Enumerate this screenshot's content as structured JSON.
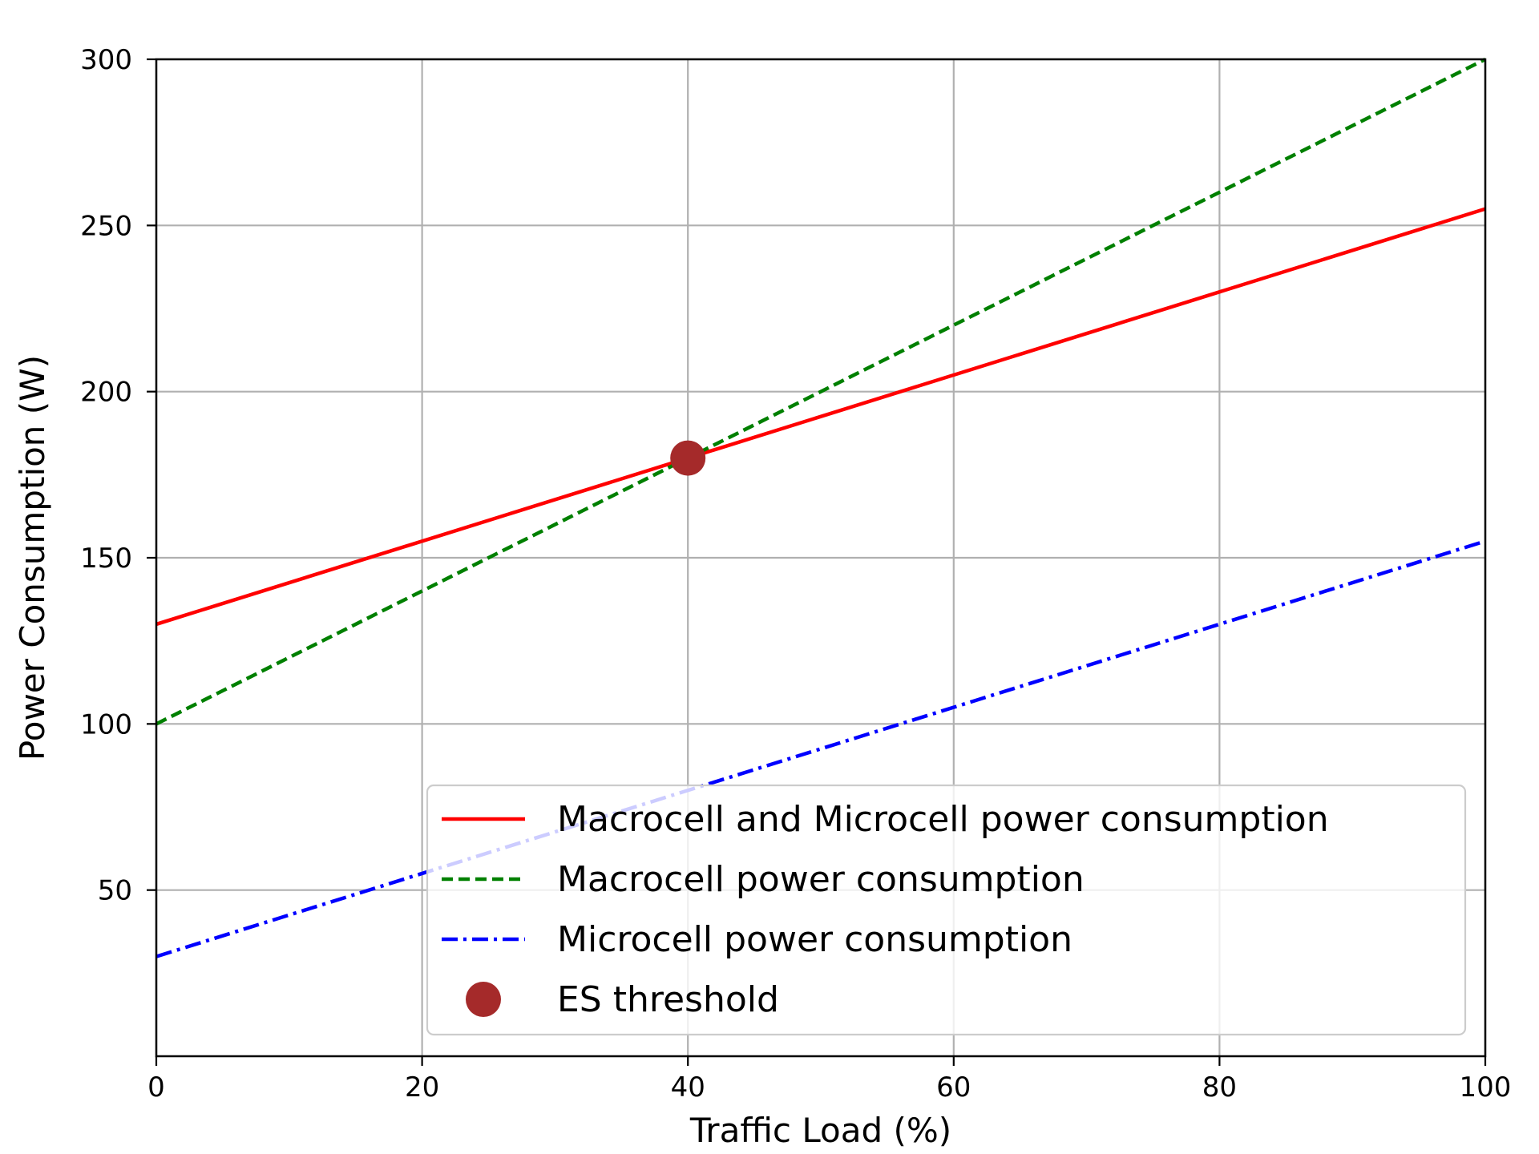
{
  "chart_data": {
    "type": "line",
    "title": "",
    "xlabel": "Traffic Load (%)",
    "ylabel": "Power Consumption (W)",
    "xlim": [
      0,
      100
    ],
    "ylim": [
      0,
      300
    ],
    "xticks": [
      0,
      20,
      40,
      60,
      80,
      100
    ],
    "yticks": [
      50,
      100,
      150,
      200,
      250,
      300
    ],
    "grid": true,
    "legend_position": "lower-right",
    "series": [
      {
        "name": "Macrocell and Microcell power consumption",
        "x": [
          0,
          100
        ],
        "y": [
          130,
          255
        ],
        "color": "#ff0000",
        "style": "solid"
      },
      {
        "name": "Macrocell power consumption",
        "x": [
          0,
          100
        ],
        "y": [
          100,
          300
        ],
        "color": "#008000",
        "style": "dashed"
      },
      {
        "name": "Microcell power consumption",
        "x": [
          0,
          100
        ],
        "y": [
          30,
          155
        ],
        "color": "#0000ff",
        "style": "dashdot"
      }
    ],
    "points": [
      {
        "name": "ES threshold",
        "x": 40,
        "y": 180,
        "color": "#a52a2a"
      }
    ]
  }
}
